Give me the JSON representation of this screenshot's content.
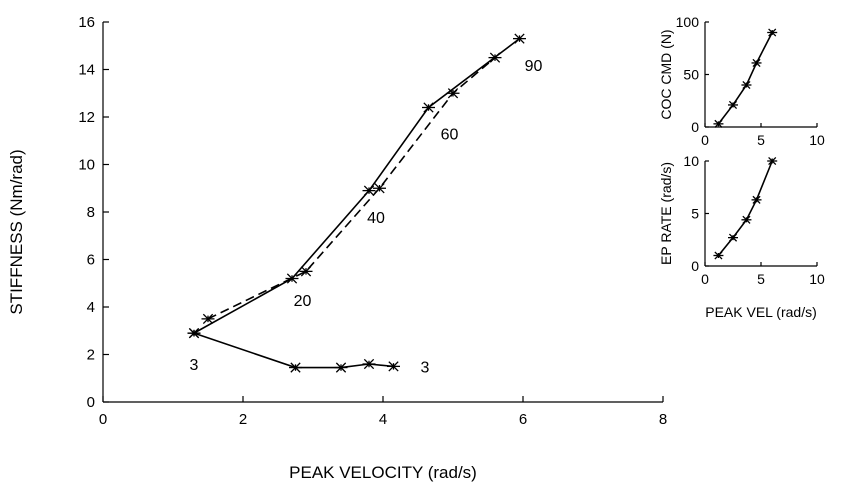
{
  "chart_data": [
    {
      "type": "line",
      "title": "",
      "xlabel": "PEAK VELOCITY (rad/s)",
      "ylabel": "STIFFNESS (Nm/rad)",
      "xlim": [
        0,
        8
      ],
      "ylim": [
        0,
        16
      ],
      "xticks": [
        0,
        2,
        4,
        6,
        8
      ],
      "yticks": [
        0,
        2,
        4,
        6,
        8,
        10,
        12,
        14,
        16
      ],
      "grid": false,
      "series": [
        {
          "style": "solid",
          "x": [
            1.3,
            2.7,
            3.8,
            4.65,
            5.95
          ],
          "y": [
            2.9,
            5.2,
            8.9,
            12.4,
            15.3
          ]
        },
        {
          "style": "dashed",
          "x": [
            1.5,
            2.9,
            3.95,
            5.0,
            5.6
          ],
          "y": [
            3.5,
            5.5,
            9.0,
            13.0,
            14.5
          ]
        },
        {
          "style": "solid",
          "x": [
            1.3,
            2.75,
            3.4,
            3.8,
            4.15
          ],
          "y": [
            2.9,
            1.45,
            1.45,
            1.6,
            1.5
          ]
        }
      ],
      "annotations": [
        {
          "text": "3",
          "x": 1.3,
          "y": 1.6
        },
        {
          "text": "20",
          "x": 2.85,
          "y": 4.3
        },
        {
          "text": "40",
          "x": 3.9,
          "y": 7.8
        },
        {
          "text": "60",
          "x": 4.95,
          "y": 11.3
        },
        {
          "text": "90",
          "x": 6.15,
          "y": 14.2
        },
        {
          "text": "3",
          "x": 4.6,
          "y": 1.5
        }
      ]
    },
    {
      "type": "line",
      "title": "",
      "xlabel": "",
      "ylabel": "COC CMD (N)",
      "xlim": [
        0,
        10
      ],
      "ylim": [
        0,
        100
      ],
      "xticks": [
        0,
        5,
        10
      ],
      "xticklabels": [
        "0",
        "5",
        "10"
      ],
      "yticks": [
        0,
        50,
        100
      ],
      "grid": false,
      "series": [
        {
          "style": "solid",
          "x": [
            1.2,
            2.5,
            3.7,
            4.6,
            6.0
          ],
          "y": [
            3,
            21,
            40,
            61,
            90
          ]
        }
      ]
    },
    {
      "type": "line",
      "title": "",
      "xlabel": "PEAK VEL (rad/s)",
      "ylabel": "EP RATE (rad/s)",
      "xlim": [
        0,
        10
      ],
      "ylim": [
        0,
        10
      ],
      "xticks": [
        0,
        5,
        10
      ],
      "xticklabels": [
        "0",
        "5",
        "10"
      ],
      "yticks": [
        0,
        5,
        10
      ],
      "grid": false,
      "series": [
        {
          "style": "solid",
          "x": [
            1.2,
            2.5,
            3.7,
            4.6,
            6.0
          ],
          "y": [
            1.0,
            2.7,
            4.4,
            6.3,
            10.0
          ]
        }
      ]
    }
  ]
}
